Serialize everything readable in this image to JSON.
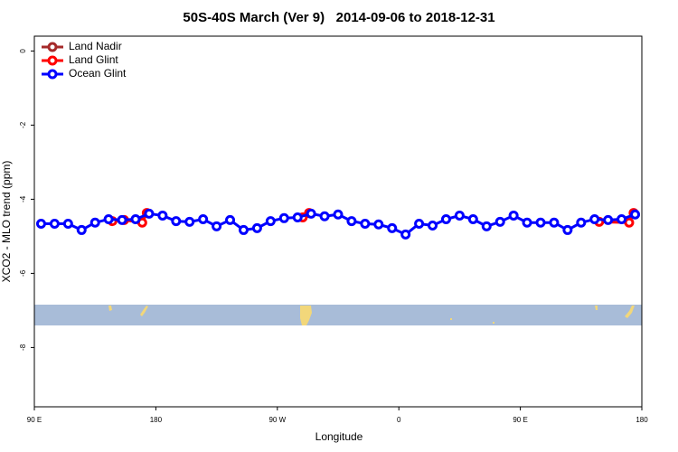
{
  "chart_data": {
    "type": "line",
    "title": "50S-40S March (Ver 9)   2014-09-06 to 2018-12-31",
    "x_label": "Longitude",
    "y_label": "XCO2 - MLO trend (ppm)",
    "xlim": [
      90,
      540
    ],
    "xticks": [
      {
        "value": 90,
        "label": "90 E"
      },
      180,
      {
        "value": 270,
        "label": "90 W"
      },
      {
        "value": 360,
        "label": "0"
      },
      {
        "value": 450,
        "label": "90 E"
      },
      {
        "value": 540,
        "label": "180"
      }
    ],
    "ylim": [
      -9.6,
      0.4
    ],
    "yticks": [
      0,
      -2,
      -4,
      -6,
      -8
    ],
    "grid": false,
    "legend": "top-left",
    "series": [
      {
        "name": "Land Nadir",
        "color": "#a52a2a",
        "x": [],
        "values": []
      },
      {
        "name": "Land Glint",
        "color": "#ff0000",
        "x": [
          147.8,
          156.5,
          169.9,
          173.3,
          null,
          288.8,
          293.5,
          null,
          508.4,
          530.6,
          533.9
        ],
        "values": [
          -4.59,
          -4.56,
          -4.63,
          -4.37,
          null,
          -4.49,
          -4.37,
          null,
          -4.61,
          -4.63,
          -4.37
        ]
      },
      {
        "name": "Ocean Glint",
        "color": "#0000ff",
        "x": [
          95,
          105,
          115,
          125,
          135,
          145,
          155,
          165,
          175,
          185,
          195,
          205,
          215,
          225,
          235,
          245,
          255,
          265,
          275,
          285,
          295,
          305,
          315,
          325,
          335,
          345,
          355,
          365,
          375,
          385,
          395,
          405,
          415,
          425,
          435,
          445,
          455,
          465,
          475,
          485,
          495,
          505,
          515,
          525,
          535
        ],
        "values": [
          -4.66,
          -4.66,
          -4.66,
          -4.83,
          -4.63,
          -4.54,
          -4.56,
          -4.54,
          -4.39,
          -4.44,
          -4.59,
          -4.61,
          -4.54,
          -4.73,
          -4.56,
          -4.83,
          -4.78,
          -4.59,
          -4.51,
          -4.49,
          -4.39,
          -4.46,
          -4.41,
          -4.59,
          -4.66,
          -4.68,
          -4.78,
          -4.95,
          -4.66,
          -4.71,
          -4.54,
          -4.44,
          -4.54,
          -4.73,
          -4.61,
          -4.44,
          -4.63,
          -4.63,
          -4.63,
          -4.83,
          -4.63,
          -4.54,
          -4.56,
          -4.54,
          -4.41
        ]
      }
    ]
  }
}
